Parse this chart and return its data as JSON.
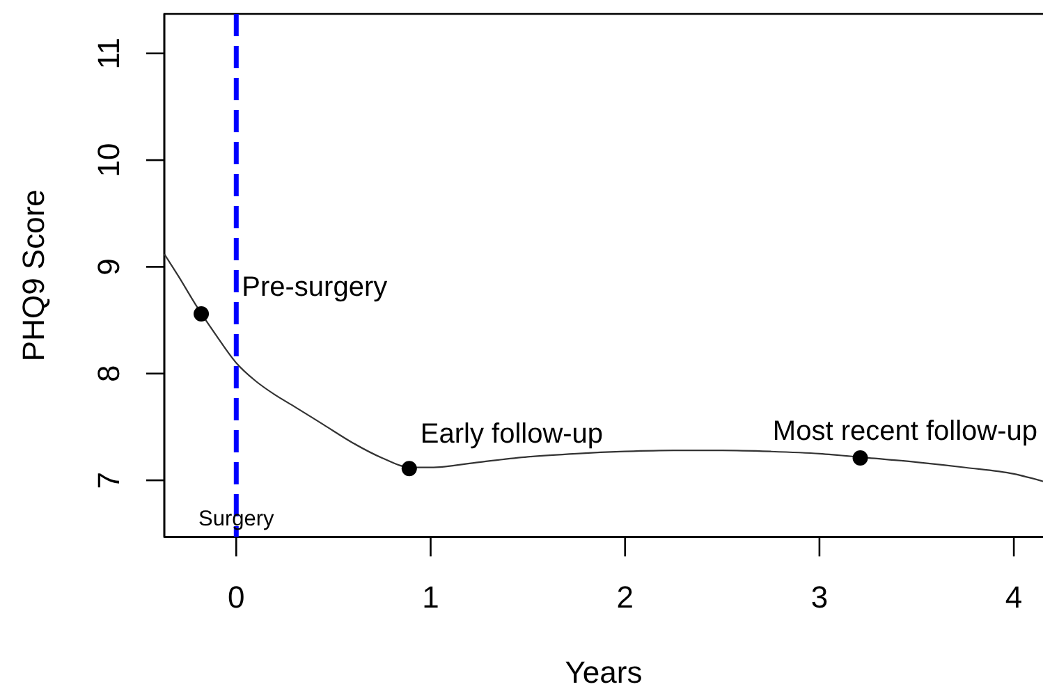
{
  "chart_data": {
    "type": "line",
    "xlabel": "Years",
    "ylabel": "PHQ9 Score",
    "xlim": [
      -0.37,
      4.15
    ],
    "ylim": [
      6.47,
      11.37
    ],
    "xticks": [
      0,
      1,
      2,
      3,
      4
    ],
    "yticks": [
      7,
      8,
      9,
      10,
      11
    ],
    "series": [
      {
        "color": "#333333",
        "x": [
          -0.37,
          -0.3,
          -0.2,
          -0.1,
          0,
          0.1,
          0.2,
          0.3,
          0.45,
          0.6,
          0.75,
          0.9,
          1.0,
          1.25,
          1.5,
          1.75,
          2.0,
          2.25,
          2.5,
          2.75,
          3.0,
          3.25,
          3.5,
          3.75,
          4.0,
          4.15
        ],
        "values": [
          9.12,
          8.92,
          8.62,
          8.35,
          8.1,
          7.93,
          7.8,
          7.69,
          7.52,
          7.35,
          7.21,
          7.12,
          7.12,
          7.17,
          7.22,
          7.25,
          7.27,
          7.28,
          7.28,
          7.27,
          7.25,
          7.21,
          7.17,
          7.12,
          7.06,
          6.99
        ]
      },
      {
        "type": "scatter",
        "color": "#000000",
        "marker": "circle",
        "x": [
          -0.18,
          0.89,
          3.21
        ],
        "values": [
          8.56,
          7.11,
          7.21
        ]
      }
    ],
    "ref_lines": [
      {
        "axis": "x",
        "value": 0,
        "label": "Surgery",
        "color": "#0000ff",
        "line_style": "dashed"
      }
    ],
    "annotations": [
      {
        "text": "Pre-surgery",
        "x": -0.18,
        "y": 8.56
      },
      {
        "text": "Early follow-up",
        "x": 0.89,
        "y": 7.11
      },
      {
        "text": "Most recent follow-up",
        "x": 3.21,
        "y": 7.21
      }
    ]
  }
}
